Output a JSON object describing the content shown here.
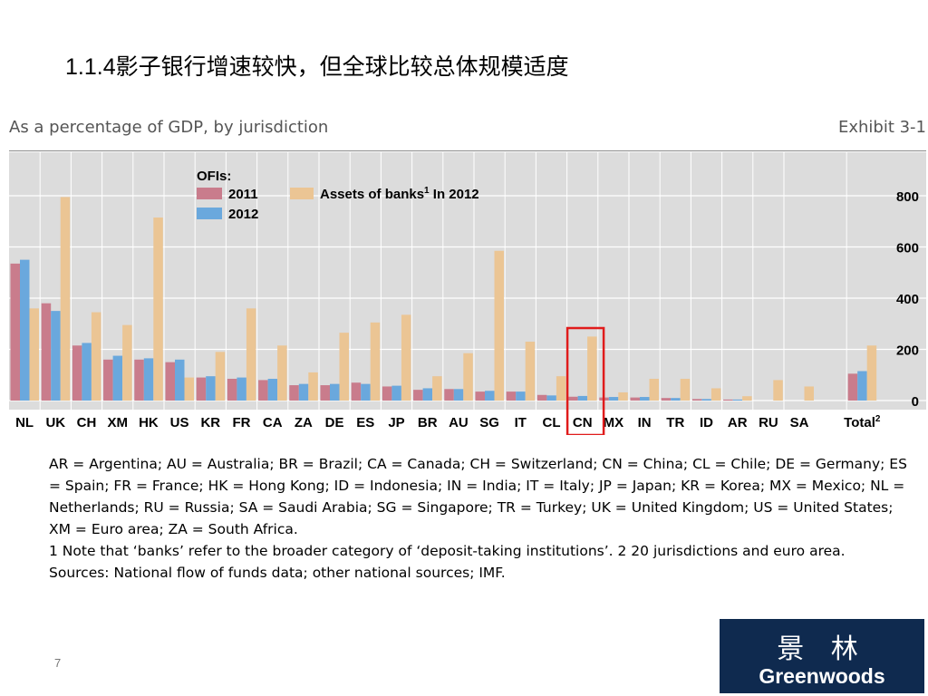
{
  "slide": {
    "title_num": "1.1.4",
    "title_text": "影子银行增速较快，但全球比较总体规模适度",
    "page_number": "7"
  },
  "logo": {
    "cn": "景 林",
    "en": "Greenwoods"
  },
  "colors": {
    "s2011": "#c97c8c",
    "s2012": "#6aa8dd",
    "banks": "#ebc594",
    "highlight": "#e01b1b",
    "plot_bg": "#dcdcdc"
  },
  "chart_data": {
    "type": "bar",
    "title": "As a percentage of GDP, by jurisdiction",
    "exhibit": "Exhibit 3-1",
    "legend": {
      "heading": "OFIs:",
      "placement": "top-left",
      "entries": [
        {
          "label": "2011"
        },
        {
          "label": "2012"
        },
        {
          "label": "Assets of banks",
          "sup": "1",
          "suffix": " In 2012"
        }
      ]
    },
    "categories": [
      "NL",
      "UK",
      "CH",
      "XM",
      "HK",
      "US",
      "KR",
      "FR",
      "CA",
      "ZA",
      "DE",
      "ES",
      "JP",
      "BR",
      "AU",
      "SG",
      "IT",
      "CL",
      "CN",
      "MX",
      "IN",
      "TR",
      "ID",
      "AR",
      "RU",
      "SA",
      "Total"
    ],
    "category_sups": {
      "Total": "2"
    },
    "highlight_category": "CN",
    "series": [
      {
        "name": "2011",
        "values": [
          535,
          380,
          215,
          160,
          160,
          150,
          90,
          85,
          80,
          60,
          60,
          70,
          55,
          42,
          45,
          35,
          35,
          22,
          15,
          12,
          12,
          10,
          6,
          4,
          0,
          0,
          105
        ]
      },
      {
        "name": "2012",
        "values": [
          550,
          350,
          225,
          175,
          165,
          160,
          95,
          90,
          85,
          65,
          65,
          65,
          58,
          48,
          45,
          38,
          35,
          20,
          18,
          14,
          14,
          10,
          6,
          4,
          0,
          0,
          115
        ]
      },
      {
        "name": "Assets of banks In 2012",
        "values": [
          360,
          795,
          345,
          295,
          715,
          90,
          190,
          360,
          215,
          110,
          265,
          305,
          335,
          95,
          185,
          585,
          230,
          95,
          250,
          32,
          85,
          85,
          48,
          17,
          80,
          55,
          215
        ]
      }
    ],
    "y_ticks": [
      0,
      200,
      400,
      600,
      800
    ],
    "ylim": [
      0,
      850
    ],
    "grid": true,
    "y_axis_position": "right"
  },
  "notes": {
    "abbreviations": "AR = Argentina; AU = Australia; BR = Brazil; CA = Canada; CH = Switzerland; CN = China; CL = Chile; DE = Germany; ES = Spain; FR = France; HK = Hong Kong; ID = Indonesia; IN = India; IT = Italy; JP = Japan; KR = Korea; MX = Mexico; NL = Netherlands; RU = Russia; SA = Saudi Arabia; SG = Singapore; TR = Turkey; UK = United Kingdom; US = United States; XM = Euro area; ZA = South Africa.",
    "footnote": "1 Note that ‘banks’ refer to the broader category of ‘deposit-taking institutions’. 2 20 jurisdictions and euro area.",
    "sources": "Sources: National flow of funds data; other national sources; IMF."
  }
}
